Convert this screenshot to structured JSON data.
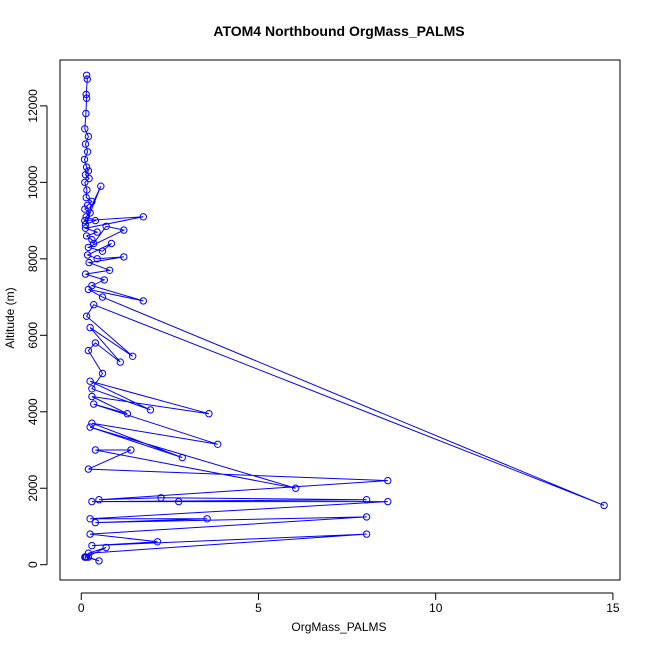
{
  "chart_data": {
    "type": "line",
    "title": "ATOM4 Northbound OrgMass_PALMS",
    "xlabel": "OrgMass_PALMS",
    "ylabel": "Altitude (m)",
    "xlim": [
      -0.6,
      15.2
    ],
    "ylim": [
      -400,
      13200
    ],
    "xticks": [
      0,
      5,
      10,
      15
    ],
    "yticks": [
      0,
      2000,
      4000,
      6000,
      8000,
      10000,
      12000
    ],
    "series_color": "#0000ff",
    "marker": "open-circle",
    "grid": false,
    "series": [
      {
        "x": [
          0.15,
          0.17,
          0.14,
          0.15,
          0.13,
          0.1,
          0.2,
          0.12,
          0.18,
          0.09,
          0.15,
          0.2,
          0.12,
          0.22,
          0.1,
          0.16,
          0.14,
          0.3,
          0.18,
          0.1,
          0.25,
          0.14,
          0.4,
          0.12,
          0.55,
          0.1,
          1.75,
          0.12,
          0.45,
          0.15,
          0.3,
          0.35,
          0.7,
          1.2,
          0.2,
          0.6,
          0.85,
          0.18,
          0.45,
          1.2,
          0.22,
          0.8,
          0.12,
          0.65,
          0.3,
          1.75,
          0.2,
          0.6,
          14.75,
          0.35,
          0.15,
          1.45,
          0.25,
          1.1,
          0.4,
          0.2,
          0.6,
          0.3,
          1.95,
          0.25,
          3.6,
          0.3,
          1.3,
          0.35,
          3.85,
          0.3,
          2.85,
          0.25,
          6.05,
          0.4,
          1.4,
          0.2,
          8.65,
          0.5,
          2.25,
          8.05,
          0.3,
          2.75,
          8.65,
          0.25,
          3.55,
          0.4,
          8.05,
          0.25,
          2.15,
          0.3,
          8.05,
          0.2,
          0.7,
          0.15,
          0.5,
          0.2,
          0.12,
          0.1
        ],
        "y": [
          12800,
          12700,
          12300,
          12200,
          11800,
          11400,
          11200,
          11000,
          10800,
          10600,
          10400,
          10300,
          10200,
          10100,
          10000,
          9800,
          9600,
          9500,
          9400,
          9300,
          9200,
          9100,
          9000,
          8900,
          9900,
          9000,
          9100,
          8800,
          8700,
          8600,
          8500,
          8400,
          8850,
          8750,
          8300,
          8200,
          8400,
          8100,
          8000,
          8050,
          7900,
          7700,
          7600,
          7450,
          7300,
          6900,
          7200,
          7000,
          1550,
          6800,
          6500,
          5450,
          6200,
          5300,
          5800,
          5600,
          5000,
          4600,
          4050,
          4800,
          3950,
          4400,
          3950,
          4200,
          3150,
          3700,
          2800,
          3600,
          2000,
          3000,
          3000,
          2500,
          2200,
          1700,
          1750,
          1700,
          1650,
          1650,
          1650,
          1200,
          1200,
          1100,
          1250,
          800,
          600,
          500,
          800,
          300,
          450,
          200,
          100,
          200,
          200,
          200
        ]
      }
    ]
  }
}
